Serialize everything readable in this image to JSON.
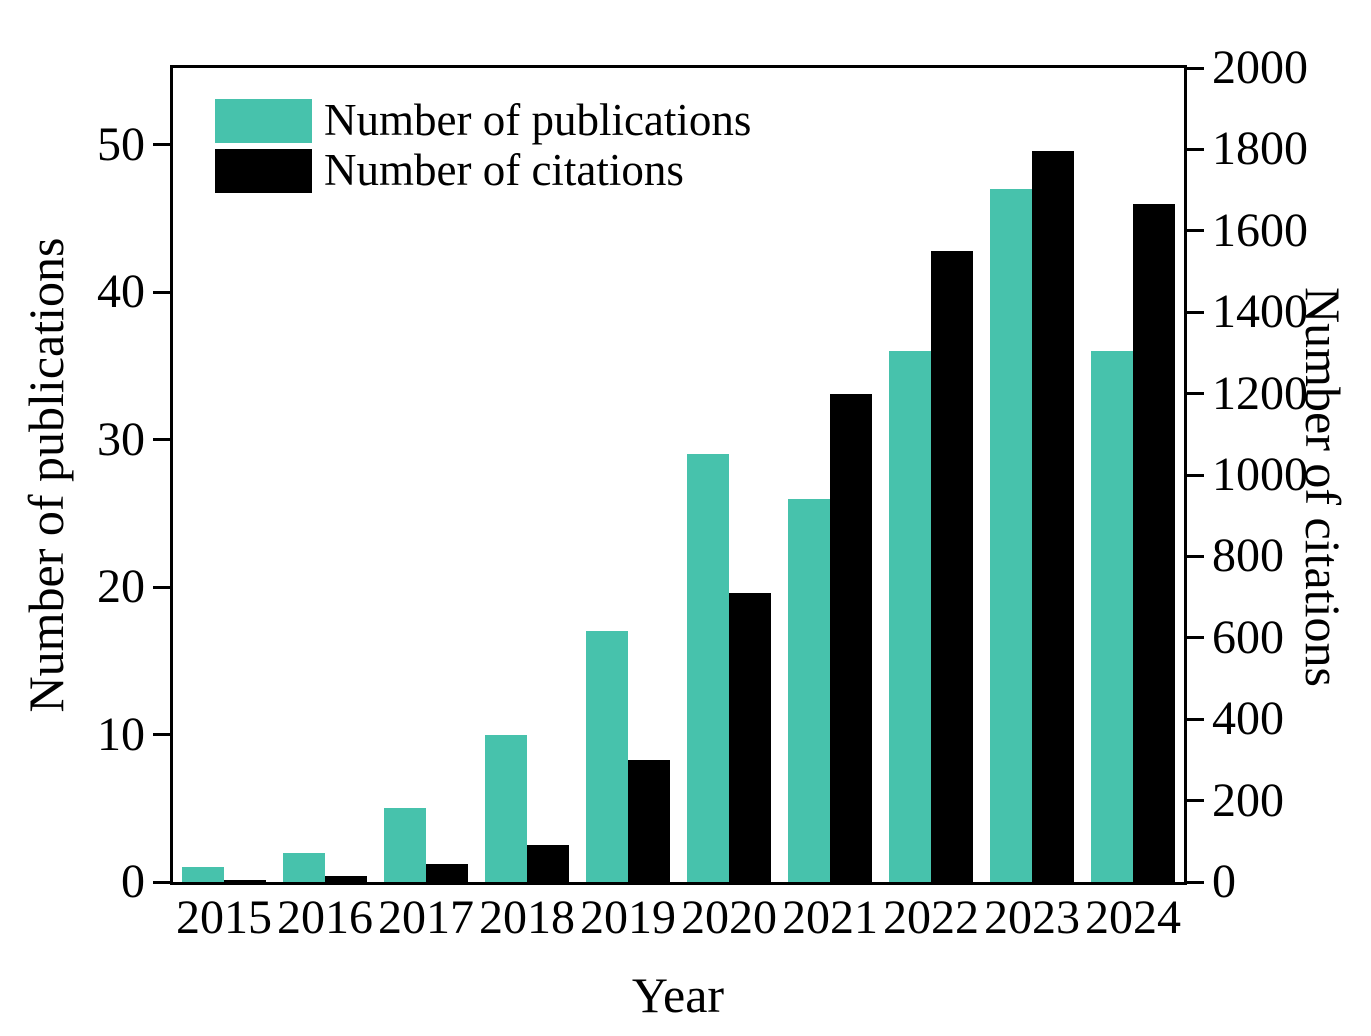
{
  "chart_data": {
    "type": "bar",
    "title": "",
    "xlabel": "Year",
    "ylabel_left": "Number of publications",
    "ylabel_right": "Number of citations",
    "categories": [
      "2015",
      "2016",
      "2017",
      "2018",
      "2019",
      "2020",
      "2021",
      "2022",
      "2023",
      "2024"
    ],
    "series": [
      {
        "name": "Number of publications",
        "axis": "left",
        "color": "#47C2AC",
        "values": [
          1,
          2,
          5,
          10,
          17,
          29,
          26,
          36,
          47,
          36
        ]
      },
      {
        "name": "Number of citations",
        "axis": "right",
        "color": "#000000",
        "values": [
          5,
          15,
          45,
          90,
          300,
          710,
          1200,
          1550,
          1795,
          1665
        ]
      }
    ],
    "left_axis": {
      "ticks": [
        0,
        10,
        20,
        30,
        40,
        50
      ],
      "ylim": [
        0,
        55.2
      ]
    },
    "right_axis": {
      "ticks": [
        0,
        200,
        400,
        600,
        800,
        1000,
        1200,
        1400,
        1600,
        1800,
        2000
      ],
      "ylim": [
        0,
        2000
      ]
    },
    "legend": {
      "position": "top-left",
      "items": [
        "Number of publications",
        "Number of citations"
      ]
    },
    "grid": false,
    "background": "#FFFFFF",
    "axis_color": "#000000"
  }
}
